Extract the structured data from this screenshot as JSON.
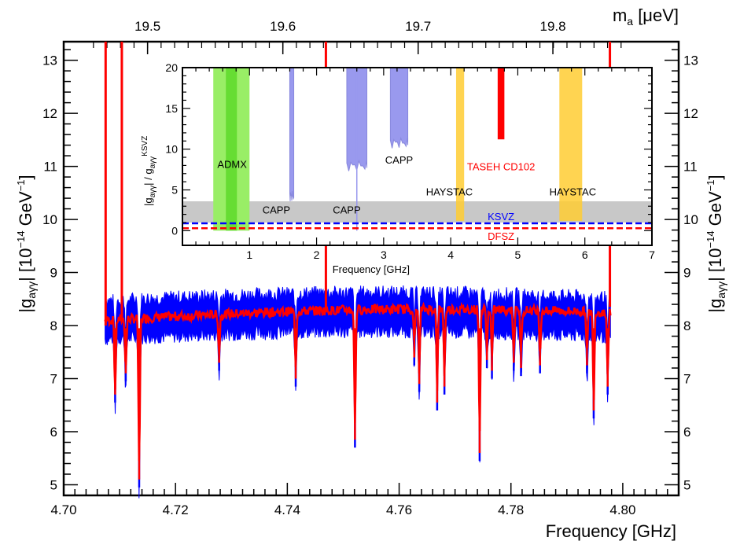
{
  "chart_data": {
    "type": "line",
    "xlabel": "Frequency [GHz]",
    "ylabel_main": "|g",
    "ylabel_sub": "aγγ",
    "ylabel_pipe": "|  ",
    "ylabel_units": "[10",
    "ylabel_exp": "−14",
    "ylabel_units2": " GeV",
    "ylabel_exp2": "−1",
    "ylabel_close": "]",
    "xlim": [
      4.7,
      4.81
    ],
    "ylim": [
      4.8,
      13.35
    ],
    "x_ticks": [
      "4.70",
      "4.72",
      "4.74",
      "4.76",
      "4.78",
      "4.80"
    ],
    "y_ticks": [
      "5",
      "6",
      "7",
      "8",
      "9",
      "10",
      "11",
      "12",
      "13"
    ],
    "top_axis": {
      "label_main": "m",
      "label_sub": "a",
      "label_unit": " [μeV]",
      "ticks": [
        "19.5",
        "19.6",
        "19.7",
        "19.8"
      ],
      "tick_freq": [
        4.715,
        4.7392,
        4.7634,
        4.7875
      ]
    },
    "series": [
      {
        "name": "",
        "color": "#0000ff",
        "style": "band",
        "x_range": [
          4.7074,
          4.7978
        ],
        "lower_baseline": 7.9,
        "upper_baseline": 8.35,
        "baseline_rise": 0.15
      },
      {
        "name": "",
        "color": "#ff0000",
        "style": "line",
        "x_range": [
          4.7074,
          4.7978
        ],
        "baseline": 8.1,
        "baseline_rise": 0.2
      }
    ],
    "dips": [
      {
        "x": 4.7092,
        "y": 6.7
      },
      {
        "x": 4.7111,
        "y": 7.1
      },
      {
        "x": 4.7135,
        "y": 5.1
      },
      {
        "x": 4.7278,
        "y": 7.3
      },
      {
        "x": 4.7415,
        "y": 7.0
      },
      {
        "x": 4.7521,
        "y": 5.85
      },
      {
        "x": 4.7627,
        "y": 7.4
      },
      {
        "x": 4.7636,
        "y": 6.9
      },
      {
        "x": 4.7668,
        "y": 6.55
      },
      {
        "x": 4.7681,
        "y": 6.85
      },
      {
        "x": 4.7744,
        "y": 5.6
      },
      {
        "x": 4.7757,
        "y": 7.35
      },
      {
        "x": 4.7766,
        "y": 7.15
      },
      {
        "x": 4.7805,
        "y": 7.3
      },
      {
        "x": 4.7818,
        "y": 7.2
      },
      {
        "x": 4.7852,
        "y": 7.25
      },
      {
        "x": 4.7936,
        "y": 7.25
      },
      {
        "x": 4.7948,
        "y": 6.4
      },
      {
        "x": 4.7973,
        "y": 6.85
      }
    ],
    "spikes": [
      {
        "x": 4.7075,
        "y_from": 8.0,
        "y_to": 13.35
      },
      {
        "x": 4.7104,
        "y_from": 8.1,
        "y_to": 13.35
      },
      {
        "x": 4.7469,
        "y_from": 8.3,
        "y_to": 13.35
      },
      {
        "x": 4.7977,
        "y_from": 8.35,
        "y_to": 13.35
      }
    ],
    "inset": {
      "xlabel": "Frequency [GHz]",
      "ylabel_a": "|g",
      "ylabel_sub": "aγγ",
      "ylabel_b": "| / g",
      "ylabel_sup": "KSVZ",
      "ylabel_c": "",
      "xlim": [
        0,
        7
      ],
      "ylim": [
        -1.8,
        20
      ],
      "x_ticks": [
        "1",
        "2",
        "3",
        "4",
        "5",
        "6",
        "7"
      ],
      "y_ticks": [
        "0",
        "5",
        "10",
        "15",
        "20"
      ],
      "theory_band": {
        "y_min": 1.0,
        "y_max": 3.6,
        "color": "#c8c8c8"
      },
      "ksvz": {
        "label": "KSVZ",
        "y": 0.9,
        "color": "#0000ff"
      },
      "dfsz": {
        "label": "DFSZ",
        "y": 0.3,
        "color": "#ff0000"
      },
      "regions": [
        {
          "label": "ADMX",
          "x0": 0.46,
          "x1": 1.0,
          "y0": 0,
          "y1": 20,
          "color": "#66dd33",
          "label_x": 0.74,
          "label_y": 8.2
        },
        {
          "label": "CAPP",
          "x0": 1.6,
          "x1": 1.66,
          "y0": 4.0,
          "y1": 20,
          "color": "#9999ee",
          "label_x": 1.4,
          "label_y": 2.6
        },
        {
          "label": "CAPP",
          "x0": 2.45,
          "x1": 2.75,
          "y0": 7.7,
          "y1": 20,
          "color": "#9999ee",
          "label_x": 2.45,
          "label_y": 2.6
        },
        {
          "label": "CAPP",
          "x0": 3.1,
          "x1": 3.36,
          "y0": 10.5,
          "y1": 20,
          "color": "#9999ee",
          "label_x": 3.23,
          "label_y": 8.7
        },
        {
          "label": "HAYSTAC",
          "x0": 4.08,
          "x1": 4.2,
          "y0": 1.2,
          "y1": 20,
          "color": "#ffcc33",
          "label_x": 3.98,
          "label_y": 4.8
        },
        {
          "label": "HAYSTAC",
          "x0": 5.62,
          "x1": 5.96,
          "y0": 1.2,
          "y1": 20,
          "color": "#ffcc33",
          "label_x": 5.82,
          "label_y": 4.8
        },
        {
          "label": "TASEH CD102",
          "x0": 4.7,
          "x1": 4.8,
          "y0": 11.2,
          "y1": 20,
          "color": "#ff0000",
          "label_x": 4.75,
          "label_y": 7.9
        }
      ],
      "capp_narrow": {
        "x": 2.6,
        "y0": 0.0,
        "y1": 20
      }
    }
  }
}
